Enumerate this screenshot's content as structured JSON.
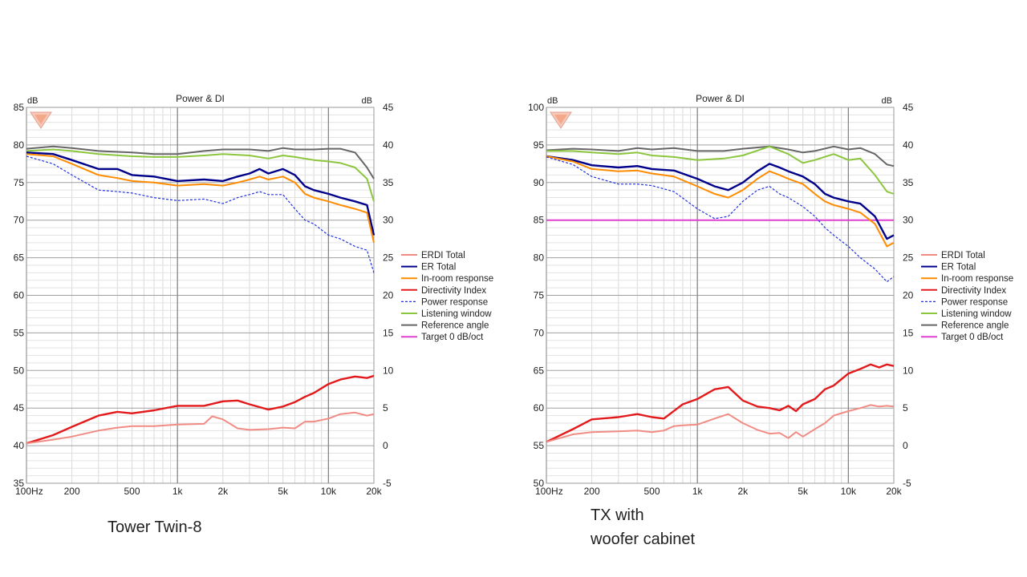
{
  "captions": {
    "left": "Tower Twin-8",
    "right_line1": "TX with",
    "right_line2": "woofer cabinet"
  },
  "colors": {
    "ERDI Total": "#f08c84",
    "ER Total": "#00008b",
    "In-room response": "#ff8c00",
    "Directivity Index": "#e31a1c",
    "Power response": "#2233dd",
    "Listening window": "#8cc63f",
    "Reference angle": "#666666",
    "Target 0 dB/oct": "#e040d0"
  },
  "chart_data": [
    {
      "type": "line",
      "title": "Power & DI",
      "xlabel": "",
      "ylabel": "dB",
      "y2label": "dB",
      "xscale": "log",
      "xlim": [
        100,
        20000
      ],
      "ylim": [
        35,
        85
      ],
      "y2lim": [
        -5,
        45
      ],
      "xticks": [
        100,
        200,
        500,
        1000,
        2000,
        5000,
        10000,
        20000
      ],
      "xticklabels": [
        "100Hz",
        "200",
        "500",
        "1k",
        "2k",
        "5k",
        "10k",
        "20k"
      ],
      "yticks": [
        35,
        40,
        45,
        50,
        55,
        60,
        65,
        70,
        75,
        80,
        85
      ],
      "y2ticks": [
        -5,
        0,
        5,
        10,
        15,
        20,
        25,
        30,
        35,
        40,
        45
      ],
      "grid": true,
      "legend_position": "right-middle",
      "legend": [
        "ERDI Total",
        "ER Total",
        "In-room response",
        "Directivity Index",
        "Power response",
        "Listening window",
        "Reference angle",
        "Target 0 dB/oct"
      ],
      "series": [
        {
          "name": "Reference angle",
          "axis": "left",
          "style": "solid",
          "x": [
            100,
            150,
            200,
            300,
            500,
            700,
            1000,
            1500,
            2000,
            3000,
            4000,
            5000,
            6000,
            8000,
            10000,
            12000,
            15000,
            18000,
            20000
          ],
          "y": [
            79.5,
            79.8,
            79.6,
            79.2,
            79.0,
            78.8,
            78.8,
            79.2,
            79.4,
            79.4,
            79.2,
            79.6,
            79.4,
            79.4,
            79.5,
            79.5,
            79.0,
            77.0,
            75.5
          ]
        },
        {
          "name": "Listening window",
          "axis": "left",
          "style": "solid",
          "x": [
            100,
            150,
            200,
            300,
            500,
            700,
            1000,
            1500,
            2000,
            3000,
            4000,
            5000,
            6000,
            8000,
            10000,
            12000,
            15000,
            18000,
            20000
          ],
          "y": [
            79.2,
            79.4,
            79.2,
            78.8,
            78.5,
            78.4,
            78.4,
            78.6,
            78.8,
            78.6,
            78.2,
            78.6,
            78.4,
            78.0,
            77.8,
            77.6,
            77.0,
            75.5,
            72.5
          ]
        },
        {
          "name": "ER Total",
          "axis": "left",
          "style": "solid",
          "x": [
            100,
            150,
            200,
            300,
            400,
            500,
            700,
            1000,
            1500,
            2000,
            2500,
            3000,
            3500,
            4000,
            5000,
            6000,
            7000,
            8000,
            10000,
            12000,
            15000,
            18000,
            20000
          ],
          "y": [
            79.0,
            78.8,
            78.0,
            76.8,
            76.8,
            76.0,
            75.8,
            75.2,
            75.4,
            75.2,
            75.8,
            76.2,
            76.8,
            76.2,
            76.8,
            76.0,
            74.5,
            74.0,
            73.5,
            73.0,
            72.5,
            72.0,
            68.0
          ]
        },
        {
          "name": "In-room response",
          "axis": "left",
          "style": "solid",
          "x": [
            100,
            150,
            200,
            300,
            400,
            500,
            700,
            1000,
            1500,
            2000,
            2500,
            3000,
            3500,
            4000,
            5000,
            6000,
            7000,
            8000,
            10000,
            12000,
            15000,
            18000,
            20000
          ],
          "y": [
            78.8,
            78.5,
            77.5,
            76.0,
            75.6,
            75.2,
            75.0,
            74.6,
            74.8,
            74.6,
            75.0,
            75.4,
            75.8,
            75.4,
            75.8,
            75.0,
            73.5,
            73.0,
            72.5,
            72.0,
            71.5,
            71.0,
            67.0
          ]
        },
        {
          "name": "Power response",
          "axis": "left",
          "style": "dashed",
          "x": [
            100,
            150,
            200,
            300,
            400,
            500,
            700,
            1000,
            1500,
            2000,
            2500,
            3000,
            3500,
            4000,
            5000,
            6000,
            7000,
            8000,
            10000,
            12000,
            15000,
            18000,
            20000
          ],
          "y": [
            78.5,
            77.5,
            76.0,
            74.0,
            73.8,
            73.6,
            73.0,
            72.6,
            72.8,
            72.2,
            73.0,
            73.4,
            73.8,
            73.4,
            73.4,
            71.5,
            70.0,
            69.5,
            68.0,
            67.5,
            66.5,
            66.0,
            63.0
          ]
        },
        {
          "name": "Directivity Index",
          "axis": "right",
          "style": "solid",
          "x": [
            100,
            150,
            200,
            300,
            400,
            500,
            700,
            1000,
            1500,
            2000,
            2500,
            3000,
            4000,
            5000,
            6000,
            7000,
            8000,
            10000,
            12000,
            15000,
            18000,
            20000
          ],
          "y": [
            0.3,
            1.4,
            2.5,
            4.0,
            4.5,
            4.3,
            4.7,
            5.3,
            5.3,
            5.9,
            6.0,
            5.5,
            4.8,
            5.2,
            5.8,
            6.5,
            7.0,
            8.2,
            8.8,
            9.2,
            9.0,
            9.3
          ]
        },
        {
          "name": "ERDI Total",
          "axis": "right",
          "style": "solid",
          "x": [
            100,
            150,
            200,
            300,
            400,
            500,
            700,
            1000,
            1500,
            1700,
            2000,
            2500,
            3000,
            4000,
            5000,
            6000,
            7000,
            8000,
            10000,
            12000,
            15000,
            18000,
            20000
          ],
          "y": [
            0.3,
            0.8,
            1.2,
            2.0,
            2.4,
            2.6,
            2.6,
            2.8,
            2.9,
            3.9,
            3.5,
            2.3,
            2.1,
            2.2,
            2.4,
            2.3,
            3.2,
            3.2,
            3.6,
            4.2,
            4.4,
            4.0,
            4.2
          ]
        }
      ]
    },
    {
      "type": "line",
      "title": "Power & DI",
      "xlabel": "",
      "ylabel": "dB",
      "y2label": "dB",
      "xscale": "log",
      "xlim": [
        100,
        20000
      ],
      "ylim": [
        50,
        100
      ],
      "y2lim": [
        -5,
        45
      ],
      "xticks": [
        100,
        200,
        500,
        1000,
        2000,
        5000,
        10000,
        20000
      ],
      "xticklabels": [
        "100Hz",
        "200",
        "500",
        "1k",
        "2k",
        "5k",
        "10k",
        "20k"
      ],
      "yticks": [
        50,
        55,
        60,
        65,
        70,
        75,
        80,
        85,
        90,
        95,
        100
      ],
      "y2ticks": [
        -5,
        0,
        5,
        10,
        15,
        20,
        25,
        30,
        35,
        40,
        45
      ],
      "grid": true,
      "legend_position": "right-middle",
      "legend": [
        "ERDI Total",
        "ER Total",
        "In-room response",
        "Directivity Index",
        "Power response",
        "Listening window",
        "Reference angle",
        "Target 0 dB/oct"
      ],
      "series": [
        {
          "name": "Target 0 dB/oct",
          "axis": "left",
          "style": "solid",
          "x": [
            100,
            20000
          ],
          "y": [
            85,
            85
          ]
        },
        {
          "name": "Reference angle",
          "axis": "left",
          "style": "solid",
          "x": [
            100,
            150,
            200,
            300,
            400,
            500,
            700,
            1000,
            1500,
            2000,
            3000,
            4000,
            5000,
            6000,
            8000,
            10000,
            12000,
            15000,
            18000,
            20000
          ],
          "y": [
            94.3,
            94.5,
            94.4,
            94.2,
            94.6,
            94.4,
            94.6,
            94.2,
            94.2,
            94.5,
            94.8,
            94.4,
            94.0,
            94.2,
            94.8,
            94.4,
            94.6,
            93.8,
            92.4,
            92.2
          ]
        },
        {
          "name": "Listening window",
          "axis": "left",
          "style": "solid",
          "x": [
            100,
            150,
            200,
            300,
            400,
            500,
            700,
            1000,
            1500,
            2000,
            3000,
            4000,
            5000,
            6000,
            8000,
            10000,
            12000,
            15000,
            18000,
            20000
          ],
          "y": [
            94.2,
            94.2,
            94.0,
            93.8,
            94.0,
            93.6,
            93.4,
            93.0,
            93.2,
            93.6,
            94.8,
            93.8,
            92.6,
            93.0,
            93.8,
            93.0,
            93.2,
            91.0,
            88.8,
            88.5
          ]
        },
        {
          "name": "ER Total",
          "axis": "left",
          "style": "solid",
          "x": [
            100,
            150,
            200,
            300,
            400,
            500,
            700,
            1000,
            1300,
            1600,
            2000,
            2500,
            3000,
            3500,
            4000,
            5000,
            6000,
            7000,
            8000,
            10000,
            12000,
            15000,
            18000,
            20000
          ],
          "y": [
            93.5,
            93.0,
            92.3,
            92.0,
            92.2,
            91.8,
            91.6,
            90.5,
            89.5,
            89.0,
            90.0,
            91.5,
            92.5,
            92.0,
            91.5,
            90.8,
            89.8,
            88.5,
            88.0,
            87.5,
            87.2,
            85.5,
            82.5,
            83.0
          ]
        },
        {
          "name": "In-room response",
          "axis": "left",
          "style": "solid",
          "x": [
            100,
            150,
            200,
            300,
            400,
            500,
            700,
            1000,
            1300,
            1600,
            2000,
            2500,
            3000,
            3500,
            4000,
            5000,
            6000,
            7000,
            8000,
            10000,
            12000,
            15000,
            18000,
            20000
          ],
          "y": [
            93.5,
            92.8,
            91.8,
            91.5,
            91.6,
            91.2,
            90.8,
            89.5,
            88.5,
            88.0,
            89.0,
            90.5,
            91.5,
            91.0,
            90.5,
            89.8,
            88.5,
            87.5,
            87.0,
            86.5,
            86.0,
            84.5,
            81.5,
            82.0
          ]
        },
        {
          "name": "Power response",
          "axis": "left",
          "style": "dashed",
          "x": [
            100,
            150,
            200,
            300,
            400,
            500,
            700,
            1000,
            1300,
            1600,
            2000,
            2500,
            3000,
            3500,
            4000,
            5000,
            6000,
            7000,
            8000,
            10000,
            12000,
            15000,
            18000,
            20000
          ],
          "y": [
            93.4,
            92.4,
            90.8,
            89.8,
            89.8,
            89.6,
            88.8,
            86.5,
            85.2,
            85.5,
            87.5,
            89.0,
            89.5,
            88.5,
            88.0,
            86.8,
            85.5,
            84.0,
            83.0,
            81.5,
            80.0,
            78.5,
            76.8,
            77.5
          ]
        },
        {
          "name": "Directivity Index",
          "axis": "right",
          "style": "solid",
          "x": [
            100,
            150,
            200,
            300,
            400,
            500,
            600,
            800,
            1000,
            1300,
            1600,
            2000,
            2500,
            3000,
            3500,
            4000,
            4500,
            5000,
            6000,
            7000,
            8000,
            10000,
            12000,
            14000,
            16000,
            18000,
            20000
          ],
          "y": [
            0.5,
            2.2,
            3.5,
            3.8,
            4.2,
            3.8,
            3.6,
            5.5,
            6.2,
            7.5,
            7.8,
            6.0,
            5.2,
            5.0,
            4.7,
            5.3,
            4.6,
            5.5,
            6.2,
            7.5,
            8.0,
            9.6,
            10.2,
            10.8,
            10.4,
            10.8,
            10.6
          ]
        },
        {
          "name": "ERDI Total",
          "axis": "right",
          "style": "solid",
          "x": [
            100,
            150,
            200,
            300,
            400,
            500,
            600,
            700,
            800,
            1000,
            1300,
            1600,
            2000,
            2500,
            3000,
            3500,
            4000,
            4500,
            5000,
            6000,
            7000,
            8000,
            10000,
            12000,
            14000,
            16000,
            18000,
            20000
          ],
          "y": [
            0.5,
            1.5,
            1.8,
            1.9,
            2.0,
            1.8,
            2.0,
            2.6,
            2.7,
            2.8,
            3.6,
            4.2,
            3.0,
            2.1,
            1.6,
            1.7,
            1.0,
            1.8,
            1.2,
            2.2,
            3.0,
            4.0,
            4.6,
            5.0,
            5.4,
            5.2,
            5.3,
            5.2
          ]
        }
      ]
    }
  ]
}
